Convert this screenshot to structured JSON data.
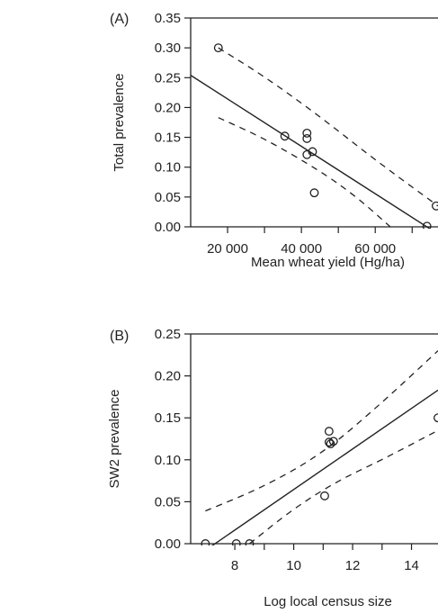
{
  "chart_data": [
    {
      "panel": "(A)",
      "type": "scatter",
      "xlabel": "Mean wheat yield (Hg/ha)",
      "ylabel": "Total prevalence",
      "xlim": [
        10000,
        77000
      ],
      "ylim": [
        0.0,
        0.35
      ],
      "x_ticks": [
        20000,
        40000,
        60000
      ],
      "x_tick_labels": [
        "20 000",
        "40 000",
        "60 000"
      ],
      "y_ticks": [
        0.0,
        0.05,
        0.1,
        0.15,
        0.2,
        0.25,
        0.3,
        0.35
      ],
      "y_tick_labels": [
        "0.00",
        "0.05",
        "0.10",
        "0.15",
        "0.20",
        "0.25",
        "0.30",
        "0.35"
      ],
      "points": [
        {
          "x": 17500,
          "y": 0.3
        },
        {
          "x": 35500,
          "y": 0.152
        },
        {
          "x": 41500,
          "y": 0.157
        },
        {
          "x": 41500,
          "y": 0.148
        },
        {
          "x": 41500,
          "y": 0.121
        },
        {
          "x": 43000,
          "y": 0.126
        },
        {
          "x": 43500,
          "y": 0.057
        },
        {
          "x": 74000,
          "y": 0.001
        },
        {
          "x": 76500,
          "y": 0.035
        }
      ],
      "fit_line": {
        "x": [
          10000,
          77000
        ],
        "y": [
          0.254,
          -0.012
        ]
      },
      "ci_upper": {
        "x": [
          17500,
          30000,
          45000,
          60000,
          77000
        ],
        "y": [
          0.3,
          0.252,
          0.185,
          0.112,
          0.035
        ]
      },
      "ci_lower": {
        "x": [
          17500,
          30000,
          45000,
          55000,
          65000
        ],
        "y": [
          0.183,
          0.148,
          0.094,
          0.05,
          -0.005
        ]
      }
    },
    {
      "panel": "(B)",
      "type": "scatter",
      "xlabel": "Log local census size",
      "ylabel": "SW2 prevalence",
      "xlim": [
        6.5,
        14.9
      ],
      "ylim": [
        0.0,
        0.25
      ],
      "x_ticks": [
        8,
        10,
        12,
        14
      ],
      "x_tick_labels": [
        "8",
        "10",
        "12",
        "14"
      ],
      "y_ticks": [
        0.0,
        0.05,
        0.1,
        0.15,
        0.2,
        0.25
      ],
      "y_tick_labels": [
        "0.00",
        "0.05",
        "0.10",
        "0.15",
        "0.20",
        "0.25"
      ],
      "points": [
        {
          "x": 7.0,
          "y": 0.0
        },
        {
          "x": 8.05,
          "y": 0.0
        },
        {
          "x": 8.5,
          "y": 0.0
        },
        {
          "x": 11.05,
          "y": 0.057
        },
        {
          "x": 11.2,
          "y": 0.134
        },
        {
          "x": 11.2,
          "y": 0.121
        },
        {
          "x": 11.25,
          "y": 0.119
        },
        {
          "x": 11.35,
          "y": 0.122
        },
        {
          "x": 14.9,
          "y": 0.15
        }
      ],
      "fit_line": {
        "x": [
          6.5,
          14.9
        ],
        "y": [
          -0.02,
          0.183
        ]
      },
      "ci_upper": {
        "x": [
          7.0,
          9.0,
          11.0,
          13.0,
          14.9
        ],
        "y": [
          0.039,
          0.068,
          0.108,
          0.168,
          0.23
        ]
      },
      "ci_lower": {
        "x": [
          8.5,
          10.0,
          11.5,
          13.0,
          14.9
        ],
        "y": [
          0.0,
          0.042,
          0.075,
          0.1,
          0.135
        ]
      }
    }
  ]
}
